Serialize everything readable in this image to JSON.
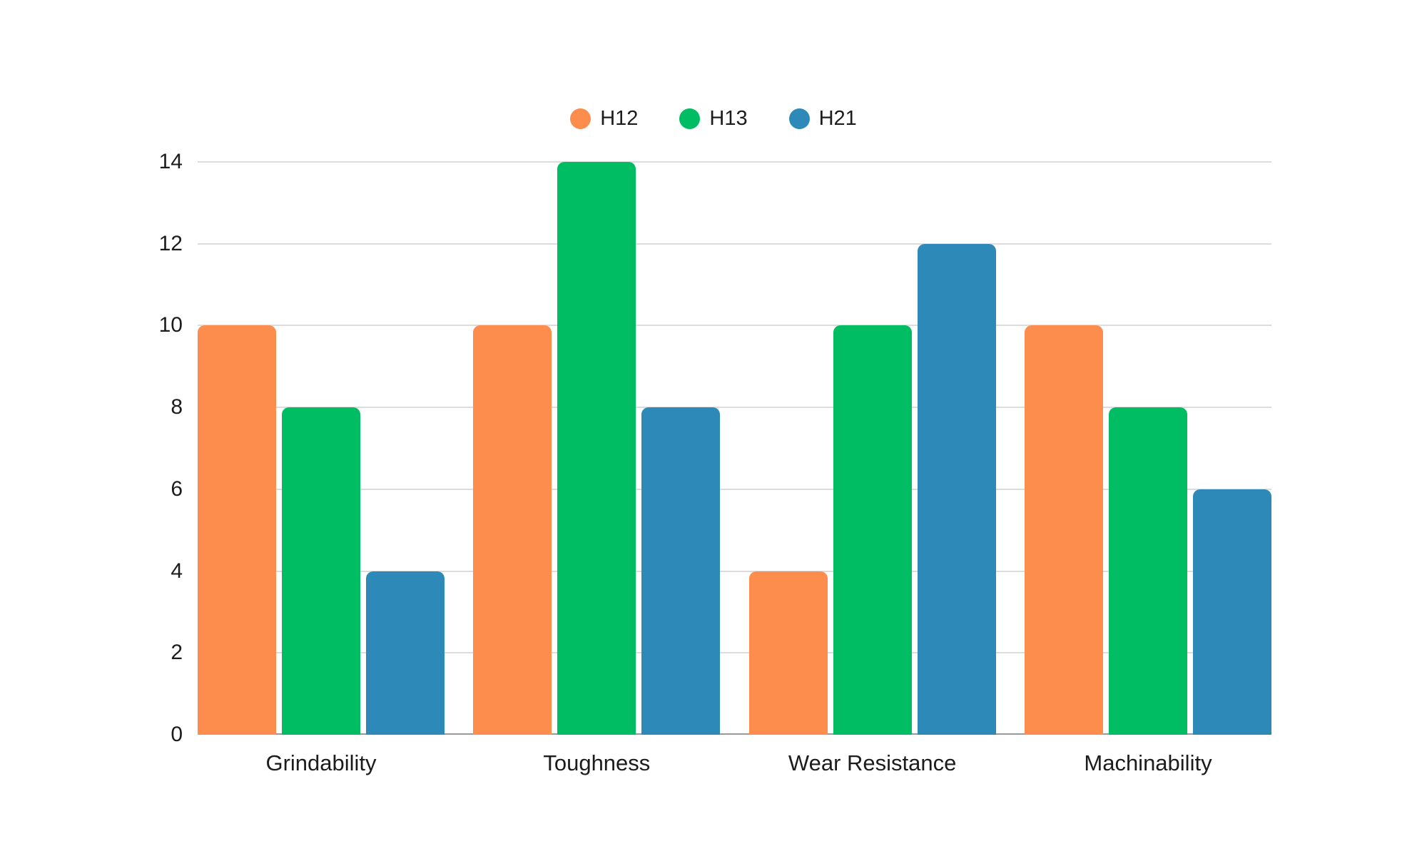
{
  "chart_data": {
    "type": "bar",
    "title": "",
    "xlabel": "",
    "ylabel": "",
    "categories": [
      "Grindability",
      "Toughness",
      "Wear Resistance",
      "Machinability"
    ],
    "series": [
      {
        "name": "H12",
        "color": "#fc8d4d",
        "values": [
          10,
          10,
          4,
          10
        ]
      },
      {
        "name": "H13",
        "color": "#00bc63",
        "values": [
          8,
          14,
          10,
          8
        ]
      },
      {
        "name": "H21",
        "color": "#2d8ab8",
        "values": [
          4,
          8,
          12,
          6
        ]
      }
    ],
    "ylim": [
      0,
      14
    ],
    "yticks": [
      0,
      2,
      4,
      6,
      8,
      10,
      12,
      14
    ],
    "grid": true,
    "legend_position": "top-center"
  },
  "colors": {
    "background": "#ffffff",
    "gridline": "#dcdcdc",
    "axis_line": "#999999",
    "text": "#1c1c1c"
  }
}
